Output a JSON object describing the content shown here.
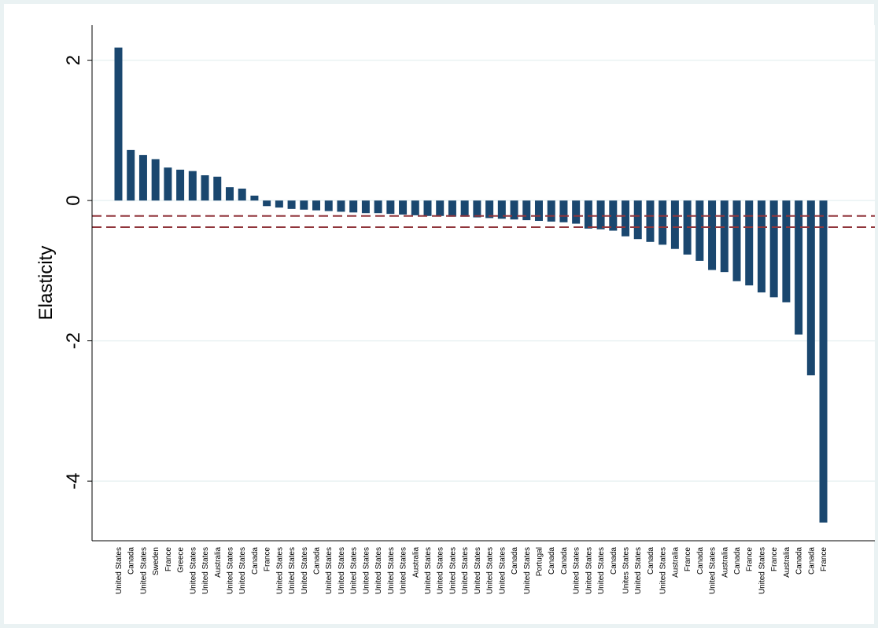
{
  "chart_data": {
    "type": "bar",
    "title": "",
    "xlabel": "",
    "ylabel": "Elasticity",
    "ylim": [
      -4.85,
      2.5
    ],
    "yticks": [
      2,
      0,
      -2,
      -4
    ],
    "ytick_labels": [
      "2",
      "0",
      "-2",
      "-4"
    ],
    "grid": true,
    "legend": "none",
    "categories": [
      "United States",
      "Canada",
      "United States",
      "Sweden",
      "France",
      "Greece",
      "United States",
      "United States",
      "Australia",
      "United States",
      "United States",
      "Canada",
      "France",
      "United States",
      "United States",
      "United States",
      "Canada",
      "United States",
      "United States",
      "United States",
      "United States",
      "United States",
      "United States",
      "United States",
      "Australia",
      "United States",
      "United States",
      "United States",
      "United States",
      "United States",
      "United States",
      "United States",
      "Canada",
      "United States",
      "Portugal",
      "Canada",
      "Canada",
      "United States",
      "United States",
      "United States",
      "Canada",
      "Unites States",
      "United States",
      "Canada",
      "United States",
      "Australia",
      "France",
      "Canada",
      "United States",
      "Australia",
      "Canada",
      "France",
      "United States",
      "France",
      "Australia",
      "Canada",
      "Canada",
      "France"
    ],
    "values": [
      2.18,
      0.72,
      0.65,
      0.59,
      0.47,
      0.44,
      0.42,
      0.36,
      0.34,
      0.19,
      0.17,
      0.07,
      -0.08,
      -0.1,
      -0.12,
      -0.13,
      -0.14,
      -0.15,
      -0.16,
      -0.17,
      -0.18,
      -0.18,
      -0.19,
      -0.2,
      -0.21,
      -0.22,
      -0.22,
      -0.23,
      -0.23,
      -0.24,
      -0.25,
      -0.26,
      -0.27,
      -0.28,
      -0.29,
      -0.3,
      -0.31,
      -0.33,
      -0.4,
      -0.41,
      -0.43,
      -0.51,
      -0.55,
      -0.59,
      -0.63,
      -0.69,
      -0.77,
      -0.86,
      -0.99,
      -1.02,
      -1.15,
      -1.21,
      -1.31,
      -1.38,
      -1.45,
      -1.91,
      -2.49,
      -4.59
    ],
    "series_color": "#1a476f",
    "reference_lines": [
      {
        "y": -0.22,
        "style": "dashed",
        "color": "#90353b"
      },
      {
        "y": -0.38,
        "style": "dashed",
        "color": "#90353b"
      }
    ],
    "plot_background": "#ffffff",
    "outer_background": "#eaf2f3",
    "grid_color": "#eaf2f3"
  }
}
